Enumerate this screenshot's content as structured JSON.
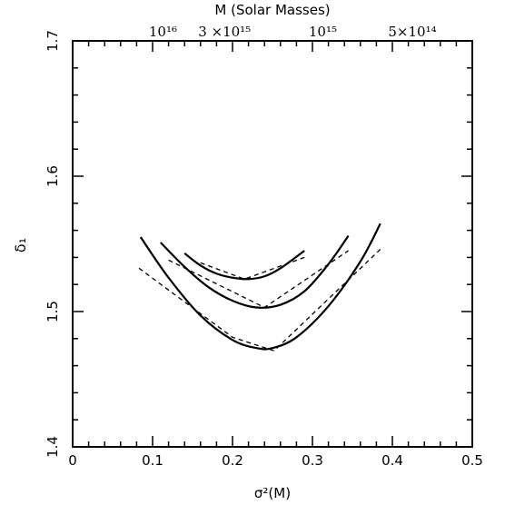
{
  "chart_data": {
    "type": "line",
    "title": "",
    "xlabel": "σ²(M)",
    "ylabel": "δ₁",
    "top_axis_label": "M (Solar Masses)",
    "xlim": [
      0,
      0.5
    ],
    "ylim": [
      1.4,
      1.7
    ],
    "x_ticks": [
      0,
      0.1,
      0.2,
      0.3,
      0.4,
      0.5
    ],
    "x_tick_labels": [
      "0",
      "0.1",
      "0.2",
      "0.3",
      "0.4",
      "0.5"
    ],
    "y_ticks": [
      1.4,
      1.5,
      1.6,
      1.7
    ],
    "y_tick_labels": [
      "1.4",
      "1.5",
      "1.6",
      "1.7"
    ],
    "top_ticks": [
      {
        "x": 0.113,
        "label": "10¹⁶"
      },
      {
        "x": 0.19,
        "label": "3 ×10¹⁵"
      },
      {
        "x": 0.313,
        "label": "10¹⁵"
      },
      {
        "x": 0.425,
        "label": "5×10¹⁴"
      }
    ],
    "grid": false,
    "legend": "none",
    "series": [
      {
        "style": "solid",
        "x": [
          0.14,
          0.16,
          0.18,
          0.2,
          0.22,
          0.24,
          0.26,
          0.29
        ],
        "y": [
          1.543,
          1.534,
          1.528,
          1.525,
          1.524,
          1.526,
          1.532,
          1.545
        ]
      },
      {
        "style": "dashed",
        "x": [
          0.16,
          0.215,
          0.29
        ],
        "y": [
          1.536,
          1.524,
          1.54
        ]
      },
      {
        "style": "solid",
        "x": [
          0.11,
          0.14,
          0.17,
          0.2,
          0.23,
          0.26,
          0.29,
          0.32,
          0.345
        ],
        "y": [
          1.551,
          1.533,
          1.518,
          1.508,
          1.503,
          1.505,
          1.515,
          1.535,
          1.556
        ]
      },
      {
        "style": "dashed",
        "x": [
          0.12,
          0.24,
          0.345
        ],
        "y": [
          1.538,
          1.503,
          1.545
        ]
      },
      {
        "style": "solid",
        "x": [
          0.085,
          0.12,
          0.16,
          0.2,
          0.23,
          0.25,
          0.28,
          0.32,
          0.36,
          0.385
        ],
        "y": [
          1.555,
          1.525,
          1.497,
          1.479,
          1.473,
          1.473,
          1.481,
          1.504,
          1.537,
          1.565
        ]
      },
      {
        "style": "dashed",
        "x": [
          0.083,
          0.2,
          0.252,
          0.385
        ],
        "y": [
          1.532,
          1.481,
          1.471,
          1.546
        ]
      }
    ]
  }
}
